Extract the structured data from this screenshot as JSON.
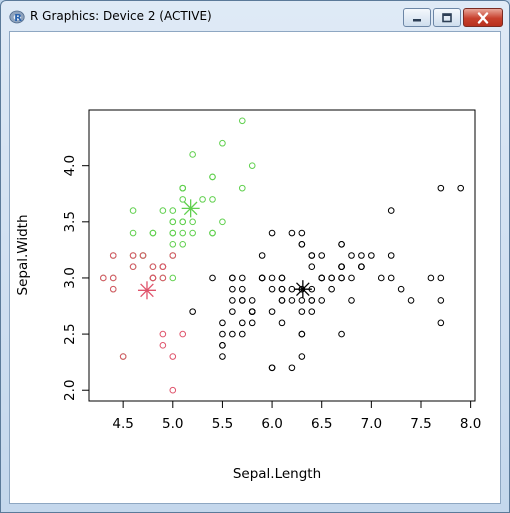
{
  "window": {
    "title": "R Graphics: Device 2 (ACTIVE)",
    "icon": "r-logo-icon",
    "controls": [
      "minimize-icon",
      "maximize-icon",
      "close-icon"
    ]
  },
  "colors": {
    "cluster1": "#000000",
    "cluster2": "#DF536B",
    "cluster3": "#61D04F"
  },
  "chart_data": {
    "type": "scatter",
    "title": "",
    "xlabel": "Sepal.Length",
    "ylabel": "Sepal.Width",
    "xlim": [
      4.3,
      7.9
    ],
    "ylim": [
      2.0,
      4.4
    ],
    "xticks": [
      "4.5",
      "5.0",
      "5.5",
      "6.0",
      "6.5",
      "7.0",
      "7.5",
      "8.0"
    ],
    "yticks": [
      "2.0",
      "2.5",
      "3.0",
      "3.5",
      "4.0"
    ],
    "grid": false,
    "point_marker": "open-circle",
    "center_marker": "asterisk",
    "series": [
      {
        "color": "#61D04F",
        "points": [
          [
            5.1,
            3.5
          ],
          [
            4.9,
            3.0
          ],
          [
            4.7,
            3.2
          ],
          [
            4.6,
            3.1
          ],
          [
            5.0,
            3.6
          ],
          [
            5.4,
            3.9
          ],
          [
            4.6,
            3.4
          ],
          [
            5.0,
            3.4
          ],
          [
            4.4,
            2.9
          ],
          [
            4.9,
            3.1
          ],
          [
            5.4,
            3.7
          ],
          [
            4.8,
            3.4
          ],
          [
            4.8,
            3.0
          ],
          [
            4.3,
            3.0
          ],
          [
            5.8,
            4.0
          ],
          [
            5.7,
            4.4
          ],
          [
            5.4,
            3.9
          ],
          [
            5.1,
            3.5
          ],
          [
            5.7,
            3.8
          ],
          [
            5.1,
            3.8
          ],
          [
            5.4,
            3.4
          ],
          [
            5.1,
            3.7
          ],
          [
            4.6,
            3.6
          ],
          [
            5.1,
            3.3
          ],
          [
            4.8,
            3.4
          ],
          [
            5.0,
            3.0
          ],
          [
            5.0,
            3.4
          ],
          [
            5.2,
            3.5
          ],
          [
            5.2,
            3.4
          ],
          [
            4.7,
            3.2
          ],
          [
            4.8,
            3.1
          ],
          [
            5.4,
            3.4
          ],
          [
            5.2,
            4.1
          ],
          [
            5.5,
            4.2
          ],
          [
            4.9,
            3.1
          ],
          [
            5.0,
            3.2
          ],
          [
            5.5,
            3.5
          ],
          [
            4.9,
            3.6
          ],
          [
            4.4,
            3.0
          ],
          [
            5.1,
            3.4
          ],
          [
            5.0,
            3.5
          ],
          [
            4.5,
            2.3
          ],
          [
            4.4,
            3.2
          ],
          [
            5.0,
            3.5
          ],
          [
            5.1,
            3.8
          ],
          [
            4.8,
            3.0
          ],
          [
            5.1,
            3.8
          ],
          [
            4.6,
            3.2
          ],
          [
            5.3,
            3.7
          ],
          [
            5.0,
            3.3
          ]
        ],
        "center": [
          5.18,
          3.62
        ]
      },
      {
        "color": "#DF536B",
        "points": [
          [
            4.9,
            3.0
          ],
          [
            4.7,
            3.2
          ],
          [
            4.6,
            3.1
          ],
          [
            4.4,
            2.9
          ],
          [
            4.9,
            3.1
          ],
          [
            4.8,
            3.0
          ],
          [
            4.3,
            3.0
          ],
          [
            4.8,
            3.1
          ],
          [
            4.9,
            3.1
          ],
          [
            5.0,
            3.2
          ],
          [
            4.4,
            3.0
          ],
          [
            4.5,
            2.3
          ],
          [
            4.4,
            3.2
          ],
          [
            4.8,
            3.0
          ],
          [
            4.6,
            3.2
          ],
          [
            4.9,
            2.4
          ],
          [
            5.0,
            2.0
          ],
          [
            5.0,
            2.3
          ],
          [
            5.1,
            2.5
          ],
          [
            4.9,
            2.5
          ]
        ],
        "center": [
          4.74,
          2.89
        ]
      },
      {
        "color": "#000000",
        "points": [
          [
            7.0,
            3.2
          ],
          [
            6.4,
            3.2
          ],
          [
            6.9,
            3.1
          ],
          [
            5.5,
            2.3
          ],
          [
            6.5,
            2.8
          ],
          [
            5.7,
            2.8
          ],
          [
            6.3,
            3.3
          ],
          [
            6.6,
            2.9
          ],
          [
            5.2,
            2.7
          ],
          [
            5.9,
            3.0
          ],
          [
            6.0,
            2.2
          ],
          [
            6.1,
            2.9
          ],
          [
            5.6,
            2.9
          ],
          [
            6.7,
            3.1
          ],
          [
            5.6,
            3.0
          ],
          [
            5.8,
            2.7
          ],
          [
            6.2,
            2.2
          ],
          [
            5.6,
            2.5
          ],
          [
            5.9,
            3.2
          ],
          [
            6.1,
            2.8
          ],
          [
            6.3,
            2.5
          ],
          [
            6.1,
            2.8
          ],
          [
            6.4,
            2.9
          ],
          [
            6.6,
            3.0
          ],
          [
            6.8,
            2.8
          ],
          [
            6.7,
            3.0
          ],
          [
            6.0,
            2.9
          ],
          [
            5.7,
            2.6
          ],
          [
            5.5,
            2.4
          ],
          [
            5.5,
            2.4
          ],
          [
            5.8,
            2.7
          ],
          [
            6.0,
            2.7
          ],
          [
            5.4,
            3.0
          ],
          [
            6.0,
            3.4
          ],
          [
            6.7,
            3.1
          ],
          [
            6.3,
            2.3
          ],
          [
            5.6,
            3.0
          ],
          [
            5.5,
            2.5
          ],
          [
            5.5,
            2.6
          ],
          [
            6.1,
            3.0
          ],
          [
            5.8,
            2.6
          ],
          [
            5.6,
            2.7
          ],
          [
            5.7,
            3.0
          ],
          [
            5.7,
            2.9
          ],
          [
            6.2,
            2.9
          ],
          [
            5.7,
            2.8
          ],
          [
            6.3,
            3.3
          ],
          [
            5.8,
            2.7
          ],
          [
            7.1,
            3.0
          ],
          [
            6.3,
            2.9
          ],
          [
            6.5,
            3.0
          ],
          [
            7.6,
            3.0
          ],
          [
            7.3,
            2.9
          ],
          [
            6.7,
            2.5
          ],
          [
            7.2,
            3.6
          ],
          [
            6.5,
            3.2
          ],
          [
            6.4,
            2.7
          ],
          [
            6.8,
            3.0
          ],
          [
            5.7,
            2.5
          ],
          [
            5.8,
            2.8
          ],
          [
            6.4,
            3.2
          ],
          [
            6.5,
            3.0
          ],
          [
            7.7,
            3.8
          ],
          [
            7.7,
            2.6
          ],
          [
            6.0,
            2.2
          ],
          [
            6.9,
            3.2
          ],
          [
            5.6,
            2.8
          ],
          [
            7.7,
            2.8
          ],
          [
            6.3,
            2.7
          ],
          [
            6.7,
            3.3
          ],
          [
            7.2,
            3.2
          ],
          [
            6.2,
            2.8
          ],
          [
            6.1,
            3.0
          ],
          [
            6.4,
            2.8
          ],
          [
            7.2,
            3.0
          ],
          [
            7.4,
            2.8
          ],
          [
            7.9,
            3.8
          ],
          [
            6.4,
            2.8
          ],
          [
            6.3,
            2.8
          ],
          [
            6.1,
            2.6
          ],
          [
            7.7,
            3.0
          ],
          [
            6.3,
            3.4
          ],
          [
            6.4,
            3.1
          ],
          [
            6.0,
            3.0
          ],
          [
            6.9,
            3.1
          ],
          [
            6.7,
            3.1
          ],
          [
            6.9,
            3.1
          ],
          [
            5.8,
            2.7
          ],
          [
            6.8,
            3.2
          ],
          [
            6.7,
            3.3
          ],
          [
            6.7,
            3.0
          ],
          [
            6.3,
            2.5
          ],
          [
            6.5,
            3.0
          ],
          [
            6.2,
            3.4
          ],
          [
            5.9,
            3.0
          ],
          [
            6.1,
            2.9
          ],
          [
            6.6,
            3.0
          ],
          [
            6.7,
            3.1
          ],
          [
            6.3,
            2.9
          ],
          [
            5.9,
            3.0
          ]
        ],
        "center": [
          6.31,
          2.9
        ]
      }
    ]
  }
}
